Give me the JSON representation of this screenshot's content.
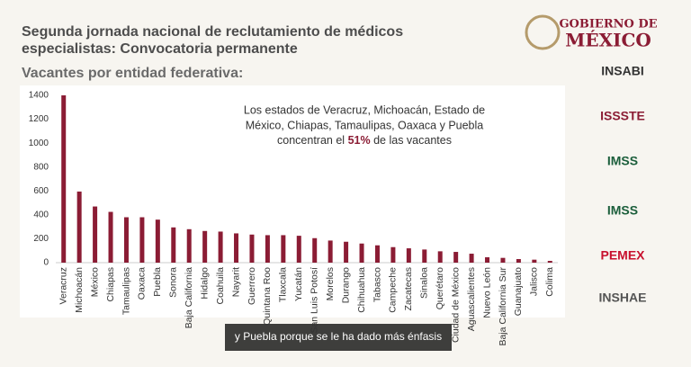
{
  "header": {
    "title_lines": [
      "Segunda jornada nacional de reclutamiento de  médicos",
      "especialistas: Convocatoria permanente"
    ],
    "gov_top": "GOBIERNO DE",
    "gov_bottom": "MÉXICO"
  },
  "logos": [
    "INSABI",
    "ISSSTE",
    "IMSS",
    "IMSS",
    "PEMEX",
    "INSHAE"
  ],
  "caption": "y Puebla porque se le ha dado más énfasis",
  "chart_data": {
    "type": "bar",
    "title": "Vacantes por entidad federativa:",
    "annotation": [
      "Los estados de Veracruz, Michoacán, Estado de",
      "México, Chiapas, Tamaulipas, Oaxaca y Puebla",
      "concentran el",
      "51%",
      "de las vacantes"
    ],
    "categories": [
      "Veracruz",
      "Michoacán",
      "México",
      "Chiapas",
      "Tamaulipas",
      "Oaxaca",
      "Puebla",
      "Sonora",
      "Baja California",
      "Hidalgo",
      "Coahuila",
      "Nayarit",
      "Guerrero",
      "Quintana Roo",
      "Tlaxcala",
      "Yucatán",
      "San Luis Potosí",
      "Morelos",
      "Durango",
      "Chihuahua",
      "Tabasco",
      "Campeche",
      "Zacatecas",
      "Sinaloa",
      "Querétaro",
      "Ciudad de México",
      "Aguascalientes",
      "Nuevo León",
      "Baja California Sur",
      "Guanajuato",
      "Jalisco",
      "Colima"
    ],
    "values": [
      1400,
      595,
      470,
      425,
      380,
      380,
      360,
      295,
      280,
      265,
      260,
      245,
      235,
      230,
      230,
      225,
      205,
      185,
      175,
      160,
      145,
      130,
      120,
      110,
      95,
      90,
      75,
      45,
      40,
      30,
      25,
      15
    ],
    "color": "#8b1c34",
    "ylim": [
      0,
      1400
    ],
    "yticks": [
      0,
      200,
      400,
      600,
      800,
      1000,
      1200,
      1400
    ],
    "grid": false
  }
}
